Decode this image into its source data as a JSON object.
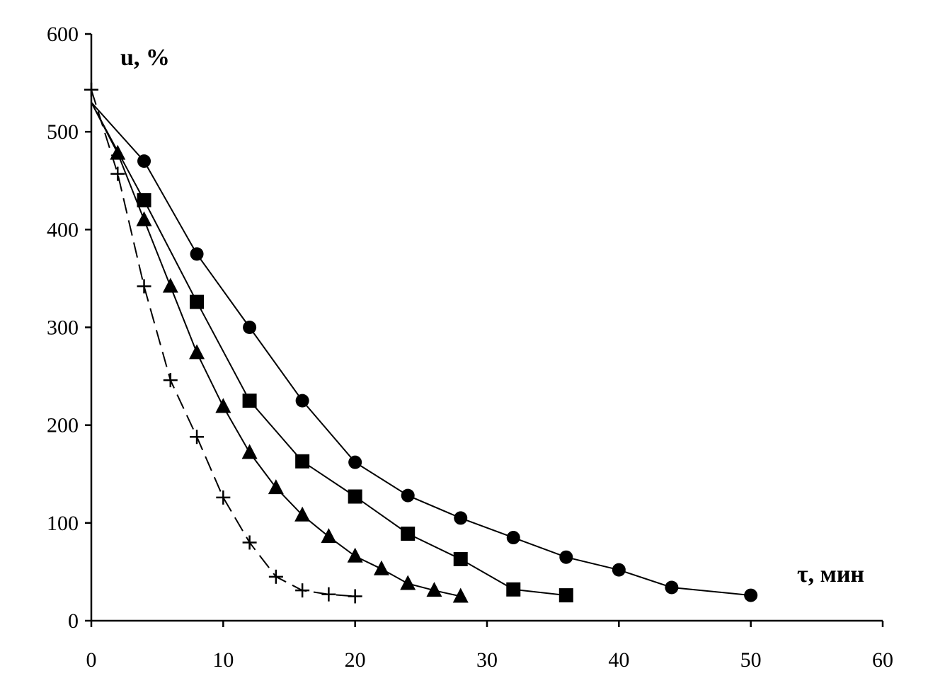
{
  "chart_data": {
    "type": "line",
    "title": "",
    "ylabel": "u, %",
    "xlabel": "τ, мин",
    "xlim": [
      0,
      60
    ],
    "ylim": [
      0,
      600
    ],
    "xticks": [
      0,
      10,
      20,
      30,
      40,
      50,
      60
    ],
    "yticks": [
      0,
      100,
      200,
      300,
      400,
      500,
      600
    ],
    "grid": false,
    "legend": "none",
    "series": [
      {
        "marker": "circle",
        "line": "solid",
        "x": [
          0,
          4,
          8,
          12,
          16,
          20,
          24,
          28,
          32,
          36,
          40,
          44,
          50
        ],
        "y": [
          530,
          470,
          375,
          300,
          225,
          162,
          128,
          105,
          85,
          65,
          52,
          34,
          26
        ]
      },
      {
        "marker": "square",
        "line": "solid",
        "x": [
          0,
          4,
          8,
          12,
          16,
          20,
          24,
          28,
          32,
          36
        ],
        "y": [
          530,
          430,
          326,
          225,
          163,
          127,
          89,
          63,
          32,
          26
        ]
      },
      {
        "marker": "triangle",
        "line": "solid",
        "x": [
          0,
          2,
          4,
          6,
          8,
          10,
          12,
          14,
          16,
          18,
          20,
          22,
          24,
          26,
          28
        ],
        "y": [
          530,
          478,
          410,
          342,
          274,
          219,
          172,
          136,
          108,
          86,
          66,
          53,
          38,
          31,
          25
        ]
      },
      {
        "marker": "plus",
        "line": "dashed",
        "x": [
          0,
          2,
          4,
          6,
          8,
          10,
          12,
          14,
          16,
          18,
          20
        ],
        "y": [
          543,
          457,
          342,
          246,
          188,
          126,
          80,
          45,
          31,
          27,
          25
        ]
      }
    ]
  }
}
